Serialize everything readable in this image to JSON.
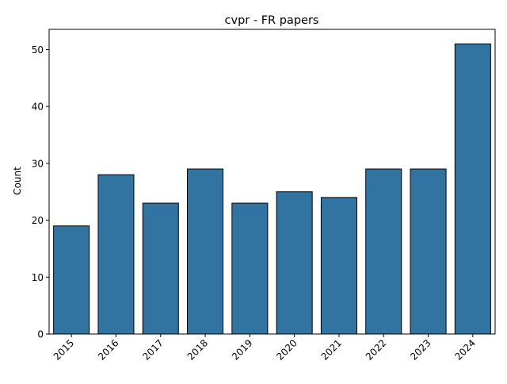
{
  "chart_data": {
    "type": "bar",
    "title": "cvpr - FR papers",
    "xlabel": "",
    "ylabel": "Count",
    "categories": [
      "2015",
      "2016",
      "2017",
      "2018",
      "2019",
      "2020",
      "2021",
      "2022",
      "2023",
      "2024"
    ],
    "values": [
      19,
      28,
      23,
      29,
      23,
      25,
      24,
      29,
      29,
      51
    ],
    "ylim": [
      0,
      53.55
    ],
    "yticks": [
      0,
      10,
      20,
      30,
      40,
      50
    ],
    "grid": false,
    "legend": "none",
    "bar_color": "#3274a1",
    "edge_color": "#000000"
  }
}
